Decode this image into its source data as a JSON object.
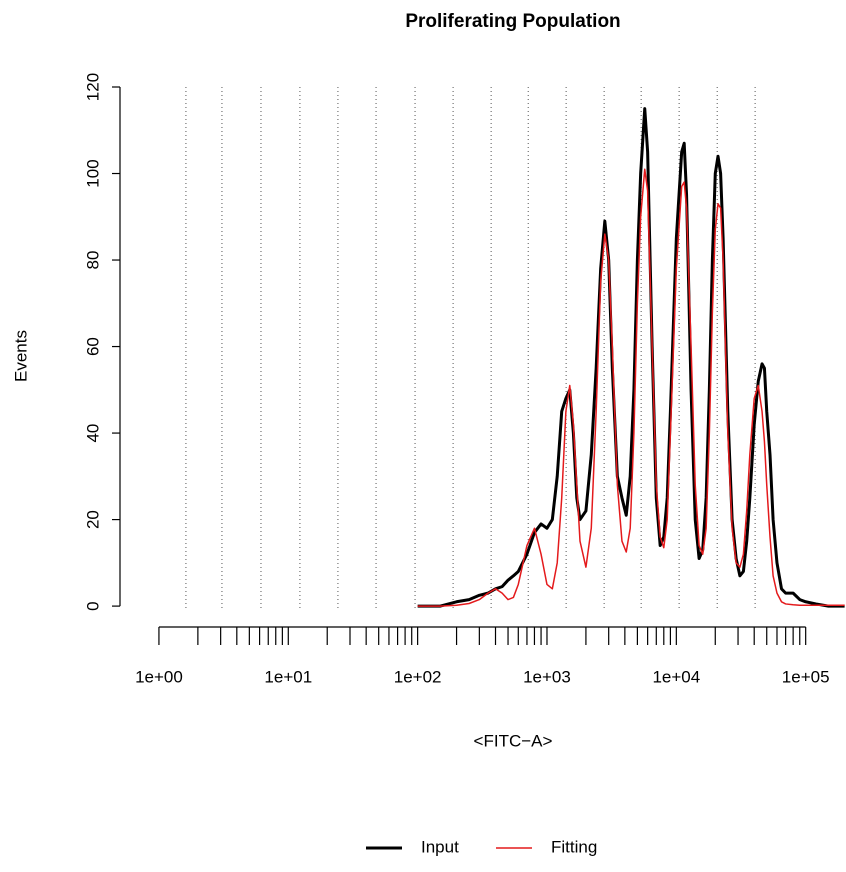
{
  "chart_data": {
    "type": "line",
    "title": "Proliferating Population",
    "x_label": "<FITC−A>",
    "y_label": "Events",
    "x_log": true,
    "xlim": [
      0.5,
      205000
    ],
    "ylim": [
      -4.6,
      120
    ],
    "xticks": [
      {
        "value": 1,
        "label": "1e+00"
      },
      {
        "value": 10,
        "label": "1e+01"
      },
      {
        "value": 100,
        "label": "1e+02"
      },
      {
        "value": 1000,
        "label": "1e+03"
      },
      {
        "value": 10000,
        "label": "1e+04"
      },
      {
        "value": 100000,
        "label": "1e+05"
      }
    ],
    "xminorticks": [
      2,
      3,
      4,
      5,
      6,
      7,
      8,
      9,
      20,
      30,
      40,
      50,
      60,
      70,
      80,
      90,
      200,
      300,
      400,
      500,
      600,
      700,
      800,
      900,
      2000,
      3000,
      4000,
      5000,
      6000,
      7000,
      8000,
      9000,
      20000,
      30000,
      40000,
      50000,
      60000,
      70000,
      80000,
      90000
    ],
    "yticks": [
      0,
      20,
      40,
      60,
      80,
      100,
      120
    ],
    "generation_lines": [
      1.617,
      3.07,
      6.15,
      12.3,
      24.2,
      47.7,
      95.5,
      188,
      370,
      716,
      1406,
      2766,
      5346,
      10510,
      20700,
      40650
    ],
    "legend_position": "bottom",
    "x": [
      100,
      150,
      200,
      250,
      300,
      350,
      400,
      450,
      500,
      550,
      600,
      700,
      800,
      900,
      1000,
      1100,
      1200,
      1300,
      1400,
      1500,
      1600,
      1700,
      1800,
      2000,
      2200,
      2400,
      2600,
      2800,
      3000,
      3200,
      3500,
      3800,
      4100,
      4400,
      4700,
      5000,
      5300,
      5700,
      6000,
      6500,
      7000,
      7500,
      8000,
      8500,
      9000,
      10000,
      11000,
      11500,
      12000,
      13000,
      14000,
      15000,
      16000,
      17000,
      18000,
      19000,
      20000,
      21000,
      22000,
      23000,
      25000,
      27000,
      29000,
      31000,
      33000,
      35000,
      37000,
      40000,
      43000,
      46000,
      48000,
      50000,
      53000,
      56000,
      60000,
      65000,
      70000,
      80000,
      90000,
      100000,
      120000,
      150000,
      200000
    ],
    "series": [
      {
        "name": "Input",
        "color": "#000000",
        "width": 3,
        "values": [
          0,
          0,
          1,
          1.5,
          2.5,
          3,
          4,
          4.5,
          6,
          7,
          8,
          12,
          17,
          19,
          18,
          20,
          30,
          45,
          48,
          50,
          40,
          25,
          20,
          22,
          35,
          55,
          78,
          89,
          80,
          55,
          30,
          25,
          21,
          30,
          50,
          80,
          100,
          115,
          105,
          60,
          25,
          14,
          16,
          25,
          45,
          85,
          105,
          107,
          95,
          50,
          20,
          11,
          13,
          25,
          50,
          80,
          100,
          104,
          100,
          85,
          45,
          20,
          11,
          7,
          8,
          15,
          25,
          42,
          52,
          56,
          55,
          45,
          35,
          20,
          10,
          4,
          3,
          3,
          1.5,
          1,
          0.5,
          0,
          0
        ]
      },
      {
        "name": "Fitting",
        "color": "#e41a1c",
        "width": 1.5,
        "values": [
          0,
          0,
          0.2,
          0.6,
          1.5,
          3,
          4,
          3,
          1.5,
          2,
          5,
          14,
          18,
          12,
          5,
          4,
          10,
          25,
          45,
          51,
          42,
          28,
          15,
          9,
          18,
          45,
          75,
          86,
          80,
          60,
          28,
          15,
          12.5,
          18,
          40,
          70,
          90,
          101,
          96,
          60,
          28,
          16,
          13.5,
          20,
          40,
          78,
          97,
          98,
          92,
          60,
          28,
          14,
          12,
          18,
          40,
          68,
          87,
          93,
          92,
          80,
          40,
          18,
          10,
          9,
          12,
          22,
          35,
          48,
          51,
          45,
          38,
          28,
          16,
          7,
          3,
          1,
          0.5,
          0.3,
          0.2,
          0.2,
          0.2,
          0.2,
          0.2
        ]
      }
    ]
  }
}
